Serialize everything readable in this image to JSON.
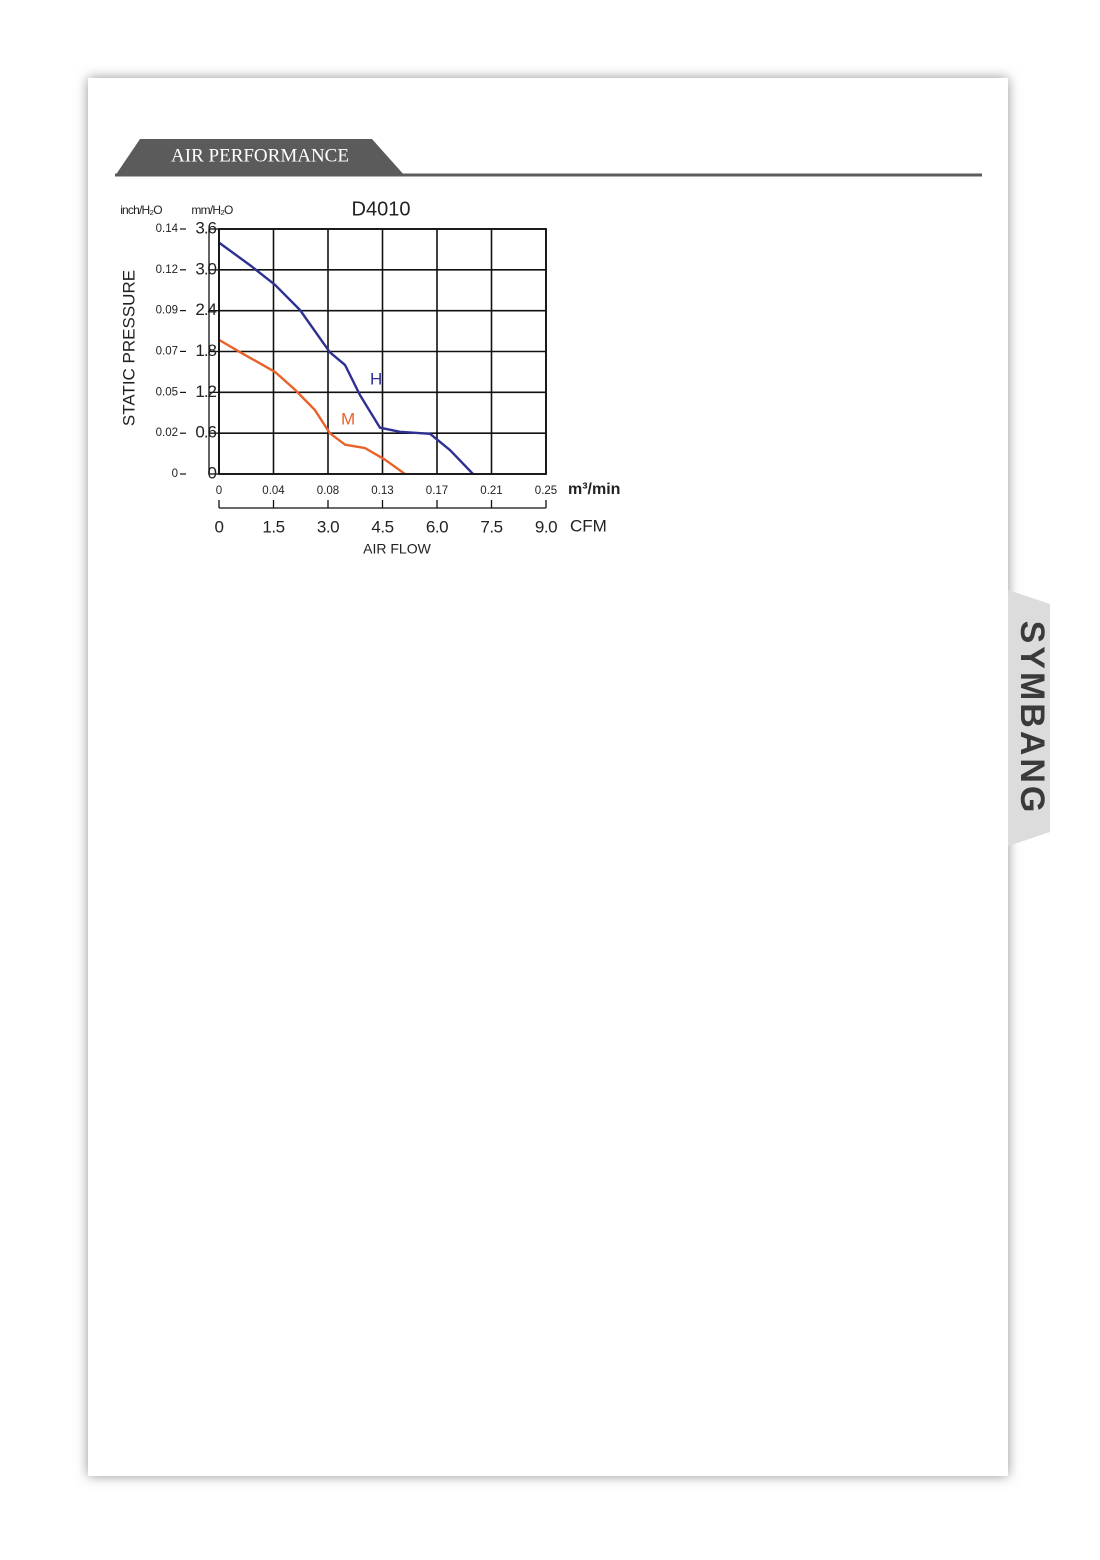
{
  "header": {
    "title": "AIR PERFORMANCE"
  },
  "brand": "SYMBANG",
  "chart_data": {
    "type": "line",
    "title": "D4010",
    "x_label": "AIR FLOW",
    "x_unit": "CFM",
    "x2_unit": "m³/min",
    "y_label": "STATIC PRESSURE",
    "y_unit": "mm/H₂O",
    "y2_unit": "inch/H₂O",
    "xlim": [
      0,
      9
    ],
    "xticks": [
      0,
      1.5,
      {
        "value": 3,
        "label": "3.0"
      },
      4.5,
      {
        "value": 6,
        "label": "6.0"
      },
      7.5,
      {
        "value": 9,
        "label": "9.0"
      }
    ],
    "x2lim": [
      0,
      0.25485
    ],
    "x2ticks": [
      0,
      {
        "value": 0.04248,
        "label": "0.04"
      },
      {
        "value": 0.08495,
        "label": "0.08"
      },
      {
        "value": 0.12743,
        "label": "0.13"
      },
      {
        "value": 0.1699,
        "label": "0.17"
      },
      {
        "value": 0.21238,
        "label": "0.21"
      },
      {
        "value": 0.25485,
        "label": "0.25"
      }
    ],
    "ylim": [
      0,
      3.6
    ],
    "yticks": [
      0,
      0.6,
      1.2,
      1.8,
      2.4,
      {
        "value": 3,
        "label": "3.0"
      },
      3.6
    ],
    "y2lim": [
      0,
      0.1417
    ],
    "y2ticks": [
      0,
      {
        "value": 0.0236,
        "label": "0.02"
      },
      {
        "value": 0.0472,
        "label": "0.05"
      },
      {
        "value": 0.0709,
        "label": "0.07"
      },
      {
        "value": 0.0945,
        "label": "0.09"
      },
      {
        "value": 0.1181,
        "label": "0.12"
      },
      {
        "value": 0.1417,
        "label": "0.14"
      }
    ],
    "grid": true,
    "series": [
      {
        "name": "H",
        "color": "#2e3192",
        "x": [
          0,
          0.85,
          1.54,
          2.23,
          3.05,
          3.47,
          3.88,
          4.43,
          4.98,
          5.81,
          6.36,
          6.99
        ],
        "values": [
          3.4,
          3.07,
          2.78,
          2.41,
          1.79,
          1.6,
          1.16,
          0.68,
          0.62,
          0.59,
          0.35,
          0
        ]
      },
      {
        "name": "M",
        "color": "#e8622a",
        "x": [
          0,
          0.58,
          1.54,
          2.09,
          2.64,
          3.05,
          3.47,
          4.02,
          4.57,
          5.12
        ],
        "values": [
          1.97,
          1.79,
          1.5,
          1.24,
          0.94,
          0.6,
          0.43,
          0.38,
          0.21,
          0
        ]
      }
    ]
  }
}
